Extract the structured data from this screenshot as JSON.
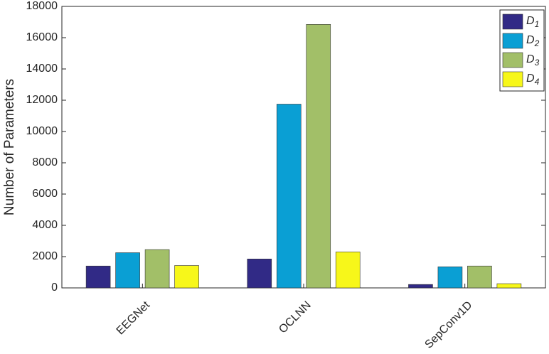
{
  "chart_data": {
    "type": "bar",
    "y_label": "Number of Parameters",
    "categories": [
      "EEGNet",
      "OCLNN",
      "SepConv1D"
    ],
    "series": [
      {
        "name": "D1",
        "color": "#312a86",
        "values": [
          1400,
          1850,
          220
        ]
      },
      {
        "name": "D2",
        "color": "#0a9fd4",
        "values": [
          2250,
          11750,
          1350
        ]
      },
      {
        "name": "D3",
        "color": "#a2bf68",
        "values": [
          2450,
          16850,
          1400
        ]
      },
      {
        "name": "D4",
        "color": "#f7f71a",
        "values": [
          1430,
          2300,
          270
        ]
      }
    ],
    "ylim": [
      0,
      18000
    ],
    "yticks": [
      0,
      2000,
      4000,
      6000,
      8000,
      10000,
      12000,
      14000,
      16000,
      18000
    ],
    "grid": false,
    "legend": "upper right"
  }
}
